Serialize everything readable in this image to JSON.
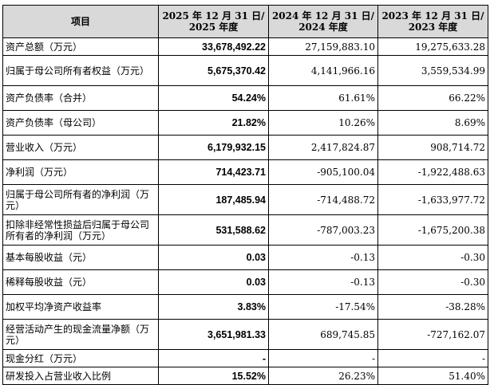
{
  "table": {
    "headers": [
      "项目",
      "2025 年 12 月 31 日/\n2025 年度",
      "2024 年 12 月 31 日/\n2024 年度",
      "2023 年 12 月 31 日/\n2023 年度"
    ],
    "rows": [
      {
        "label": "资产总额（万元）",
        "v2025": "33,678,492.22",
        "v2024": "27,159,883.10",
        "v2023": "19,275,633.28"
      },
      {
        "label": "归属于母公司所有者权益（万元）",
        "v2025": "5,675,370.42",
        "v2024": "4,141,966.16",
        "v2023": "3,559,534.99"
      },
      {
        "label": "资产负债率（合并）",
        "v2025": "54.24%",
        "v2024": "61.61%",
        "v2023": "66.22%"
      },
      {
        "label": "资产负债率（母公司）",
        "v2025": "21.82%",
        "v2024": "10.26%",
        "v2023": "8.69%"
      },
      {
        "label": "营业收入（万元）",
        "v2025": "6,179,932.15",
        "v2024": "2,417,824.87",
        "v2023": "908,714.72"
      },
      {
        "label": "净利润（万元）",
        "v2025": "714,423.71",
        "v2024": "-905,100.04",
        "v2023": "-1,922,488.63"
      },
      {
        "label": "归属于母公司所有者的净利润（万元）",
        "v2025": "187,485.94",
        "v2024": "-714,488.72",
        "v2023": "-1,633,977.72"
      },
      {
        "label": "扣除非经常性损益后归属于母公司所有者的净利润（万元）",
        "v2025": "531,588.62",
        "v2024": "-787,003.23",
        "v2023": "-1,675,200.38"
      },
      {
        "label": "基本每股收益（元）",
        "v2025": "0.03",
        "v2024": "-0.13",
        "v2023": "-0.30"
      },
      {
        "label": "稀释每股收益（元）",
        "v2025": "0.03",
        "v2024": "-0.13",
        "v2023": "-0.30"
      },
      {
        "label": "加权平均净资产收益率",
        "v2025": "3.83%",
        "v2024": "-17.54%",
        "v2023": "-38.28%"
      },
      {
        "label": "经营活动产生的现金流量净额（万元）",
        "v2025": "3,651,981.33",
        "v2024": "689,745.85",
        "v2023": "-727,162.07"
      },
      {
        "label": "现金分红（万元）",
        "v2025": "-",
        "v2024": "-",
        "v2023": "-"
      },
      {
        "label": "研发投入占营业收入比例",
        "v2025": "15.52%",
        "v2024": "26.23%",
        "v2023": "51.40%"
      }
    ]
  }
}
